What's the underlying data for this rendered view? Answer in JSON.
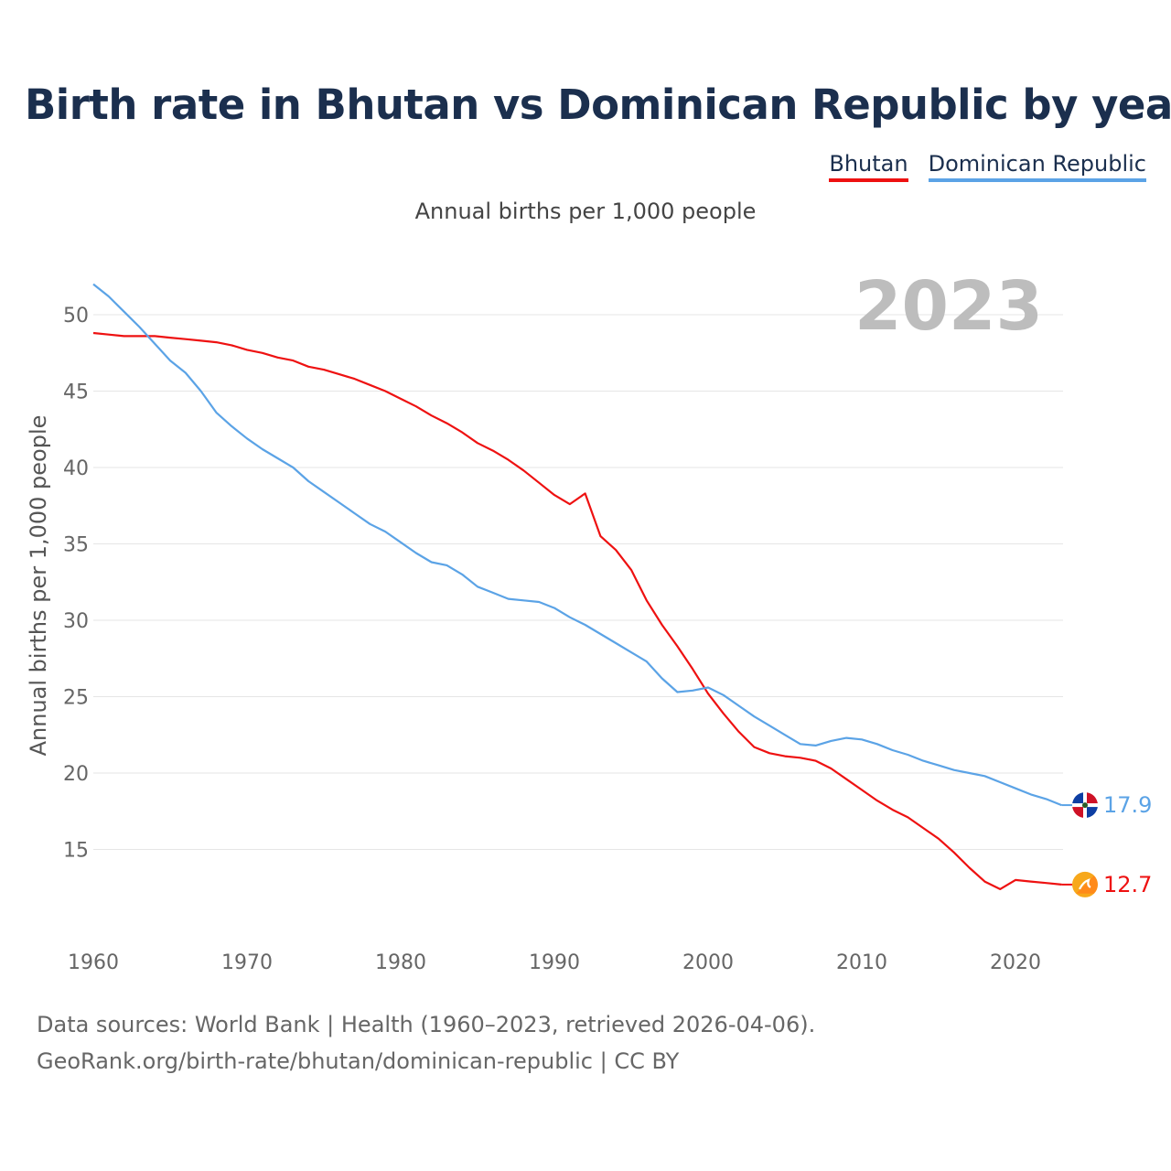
{
  "title": "Birth rate in Bhutan vs Dominican Republic by year",
  "subtitle": "Annual births per 1,000 people",
  "legend": [
    {
      "label": "Bhutan",
      "color": "#ee1111"
    },
    {
      "label": "Dominican Republic",
      "color": "#5ba3e6"
    }
  ],
  "year_display": "2023",
  "sources": {
    "line1": "Data sources: World Bank | Health (1960–2023, retrieved 2026-04-06).",
    "line2": "GeoRank.org/birth-rate/bhutan/dominican-republic | CC BY"
  },
  "chart_data": {
    "type": "line",
    "title": "Birth rate in Bhutan vs Dominican Republic by year",
    "xlabel": "",
    "ylabel": "Annual births per 1,000 people",
    "xlim": [
      1960,
      2023
    ],
    "ylim": [
      10,
      52
    ],
    "x_ticks": [
      1960,
      1970,
      1980,
      1990,
      2000,
      2010,
      2020
    ],
    "y_ticks": [
      15,
      20,
      25,
      30,
      35,
      40,
      45,
      50
    ],
    "x": [
      1960,
      1961,
      1962,
      1963,
      1964,
      1965,
      1966,
      1967,
      1968,
      1969,
      1970,
      1971,
      1972,
      1973,
      1974,
      1975,
      1976,
      1977,
      1978,
      1979,
      1980,
      1981,
      1982,
      1983,
      1984,
      1985,
      1986,
      1987,
      1988,
      1989,
      1990,
      1991,
      1992,
      1993,
      1994,
      1995,
      1996,
      1997,
      1998,
      1999,
      2000,
      2001,
      2002,
      2003,
      2004,
      2005,
      2006,
      2007,
      2008,
      2009,
      2010,
      2011,
      2012,
      2013,
      2014,
      2015,
      2016,
      2017,
      2018,
      2019,
      2020,
      2021,
      2022,
      2023
    ],
    "series": [
      {
        "name": "Bhutan",
        "color": "#ee1111",
        "end_label": "12.7",
        "values": [
          48.8,
          48.7,
          48.6,
          48.6,
          48.6,
          48.5,
          48.4,
          48.3,
          48.2,
          48.0,
          47.7,
          47.5,
          47.2,
          47.0,
          46.6,
          46.4,
          46.1,
          45.8,
          45.4,
          45.0,
          44.5,
          44.0,
          43.4,
          42.9,
          42.3,
          41.6,
          41.1,
          40.5,
          39.8,
          39.0,
          38.2,
          37.6,
          38.3,
          35.5,
          34.6,
          33.3,
          31.3,
          29.7,
          28.3,
          26.8,
          25.2,
          23.9,
          22.7,
          21.7,
          21.3,
          21.1,
          21.0,
          20.8,
          20.3,
          19.6,
          18.9,
          18.2,
          17.6,
          17.1,
          16.4,
          15.7,
          14.8,
          13.8,
          12.9,
          12.4,
          13.0,
          12.9,
          12.8,
          12.7
        ]
      },
      {
        "name": "Dominican Republic",
        "color": "#5ba3e6",
        "end_label": "17.9",
        "values": [
          52.0,
          51.2,
          50.2,
          49.2,
          48.1,
          47.0,
          46.2,
          45.0,
          43.6,
          42.7,
          41.9,
          41.2,
          40.6,
          40.0,
          39.1,
          38.4,
          37.7,
          37.0,
          36.3,
          35.8,
          35.1,
          34.4,
          33.8,
          33.6,
          33.0,
          32.2,
          31.8,
          31.4,
          31.3,
          31.2,
          30.8,
          30.2,
          29.7,
          29.1,
          28.5,
          27.9,
          27.3,
          26.2,
          25.3,
          25.4,
          25.6,
          25.1,
          24.4,
          23.7,
          23.1,
          22.5,
          21.9,
          21.8,
          22.1,
          22.3,
          22.2,
          21.9,
          21.5,
          21.2,
          20.8,
          20.5,
          20.2,
          20.0,
          19.8,
          19.4,
          19.0,
          18.6,
          18.3,
          17.9
        ]
      }
    ]
  }
}
